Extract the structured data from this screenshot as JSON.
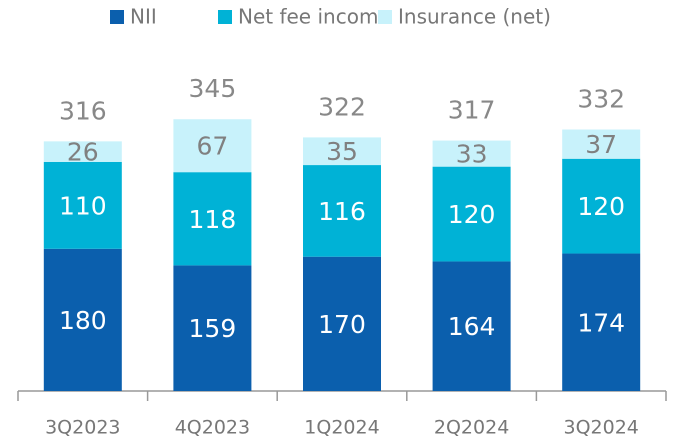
{
  "chart_data": {
    "type": "stacked-bar",
    "categories": [
      "3Q2023",
      "4Q2023",
      "1Q2024",
      "2Q2024",
      "3Q2024"
    ],
    "series": [
      {
        "name": "NII",
        "color": "#0b5fad",
        "values": [
          180,
          159,
          170,
          164,
          174
        ]
      },
      {
        "name": "Net fee income",
        "color": "#00b2d6",
        "values": [
          110,
          118,
          116,
          120,
          120
        ]
      },
      {
        "name": "Insurance (net)",
        "color": "#c8f2fb",
        "values": [
          26,
          67,
          35,
          33,
          37
        ]
      }
    ],
    "totals": [
      316,
      345,
      322,
      317,
      332
    ]
  }
}
